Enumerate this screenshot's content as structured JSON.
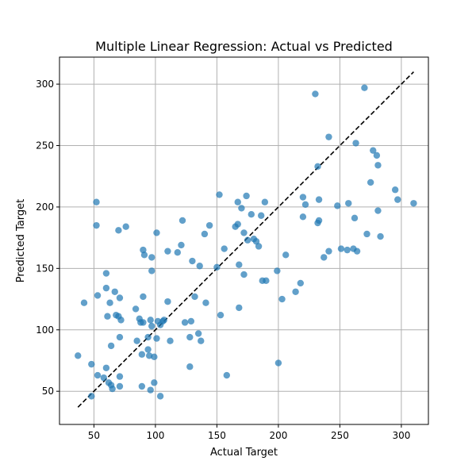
{
  "chart_data": {
    "type": "scatter",
    "title": "Multiple Linear Regression: Actual vs Predicted",
    "xlabel": "Actual Target",
    "ylabel": "Predicted Target",
    "xlim": [
      22,
      322
    ],
    "ylim": [
      23,
      322
    ],
    "xticks": [
      50,
      100,
      150,
      200,
      250,
      300
    ],
    "yticks": [
      50,
      100,
      150,
      200,
      250,
      300
    ],
    "grid": true,
    "colors": {
      "points": "#1f77b4",
      "reference_line": "#000000",
      "grid": "#b0b0b0"
    },
    "reference_line": {
      "style": "dashed",
      "x": [
        37,
        310
      ],
      "y": [
        37,
        310
      ]
    },
    "points": [
      [
        37,
        79
      ],
      [
        42,
        122
      ],
      [
        48,
        72
      ],
      [
        48,
        46
      ],
      [
        52,
        204
      ],
      [
        52,
        185
      ],
      [
        53,
        63
      ],
      [
        53,
        128
      ],
      [
        58,
        61
      ],
      [
        60,
        69
      ],
      [
        60,
        134
      ],
      [
        60,
        146
      ],
      [
        61,
        111
      ],
      [
        62,
        57
      ],
      [
        63,
        122
      ],
      [
        64,
        55
      ],
      [
        64,
        87
      ],
      [
        65,
        52
      ],
      [
        67,
        131
      ],
      [
        68,
        112
      ],
      [
        70,
        181
      ],
      [
        70,
        111
      ],
      [
        71,
        126
      ],
      [
        72,
        108
      ],
      [
        71,
        94
      ],
      [
        71,
        62
      ],
      [
        71,
        54
      ],
      [
        76,
        184
      ],
      [
        84,
        117
      ],
      [
        85,
        91
      ],
      [
        87,
        109
      ],
      [
        88,
        106
      ],
      [
        89,
        54
      ],
      [
        89,
        80
      ],
      [
        90,
        165
      ],
      [
        90,
        127
      ],
      [
        90,
        106
      ],
      [
        91,
        161
      ],
      [
        94,
        94
      ],
      [
        94,
        84
      ],
      [
        95,
        79
      ],
      [
        96,
        51
      ],
      [
        96,
        108
      ],
      [
        97,
        148
      ],
      [
        97,
        159
      ],
      [
        97,
        103
      ],
      [
        99,
        78
      ],
      [
        99,
        57
      ],
      [
        101,
        179
      ],
      [
        101,
        93
      ],
      [
        102,
        107
      ],
      [
        104,
        46
      ],
      [
        104,
        104
      ],
      [
        106,
        107
      ],
      [
        107,
        108
      ],
      [
        110,
        164
      ],
      [
        110,
        123
      ],
      [
        112,
        91
      ],
      [
        118,
        163
      ],
      [
        121,
        169
      ],
      [
        122,
        189
      ],
      [
        124,
        106
      ],
      [
        128,
        70
      ],
      [
        128,
        94
      ],
      [
        129,
        107
      ],
      [
        130,
        156
      ],
      [
        132,
        127
      ],
      [
        135,
        97
      ],
      [
        136,
        152
      ],
      [
        137,
        91
      ],
      [
        140,
        178
      ],
      [
        141,
        122
      ],
      [
        144,
        185
      ],
      [
        150,
        151
      ],
      [
        152,
        210
      ],
      [
        153,
        112
      ],
      [
        156,
        166
      ],
      [
        158,
        63
      ],
      [
        165,
        184
      ],
      [
        167,
        186
      ],
      [
        167,
        204
      ],
      [
        168,
        153
      ],
      [
        168,
        118
      ],
      [
        170,
        199
      ],
      [
        172,
        179
      ],
      [
        172,
        145
      ],
      [
        174,
        209
      ],
      [
        175,
        173
      ],
      [
        178,
        194
      ],
      [
        180,
        174
      ],
      [
        182,
        172
      ],
      [
        184,
        168
      ],
      [
        186,
        193
      ],
      [
        187,
        140
      ],
      [
        189,
        204
      ],
      [
        190,
        140
      ],
      [
        199,
        148
      ],
      [
        200,
        73
      ],
      [
        203,
        125
      ],
      [
        206,
        161
      ],
      [
        214,
        131
      ],
      [
        218,
        138
      ],
      [
        220,
        192
      ],
      [
        220,
        208
      ],
      [
        222,
        202
      ],
      [
        230,
        292
      ],
      [
        232,
        187
      ],
      [
        232,
        233
      ],
      [
        233,
        206
      ],
      [
        233,
        189
      ],
      [
        237,
        159
      ],
      [
        241,
        257
      ],
      [
        241,
        164
      ],
      [
        248,
        201
      ],
      [
        251,
        166
      ],
      [
        256,
        165
      ],
      [
        257,
        203
      ],
      [
        261,
        166
      ],
      [
        262,
        191
      ],
      [
        263,
        252
      ],
      [
        264,
        164
      ],
      [
        270,
        297
      ],
      [
        272,
        178
      ],
      [
        275,
        220
      ],
      [
        277,
        246
      ],
      [
        280,
        242
      ],
      [
        281,
        234
      ],
      [
        281,
        197
      ],
      [
        283,
        176
      ],
      [
        295,
        214
      ],
      [
        297,
        206
      ],
      [
        310,
        203
      ]
    ]
  }
}
